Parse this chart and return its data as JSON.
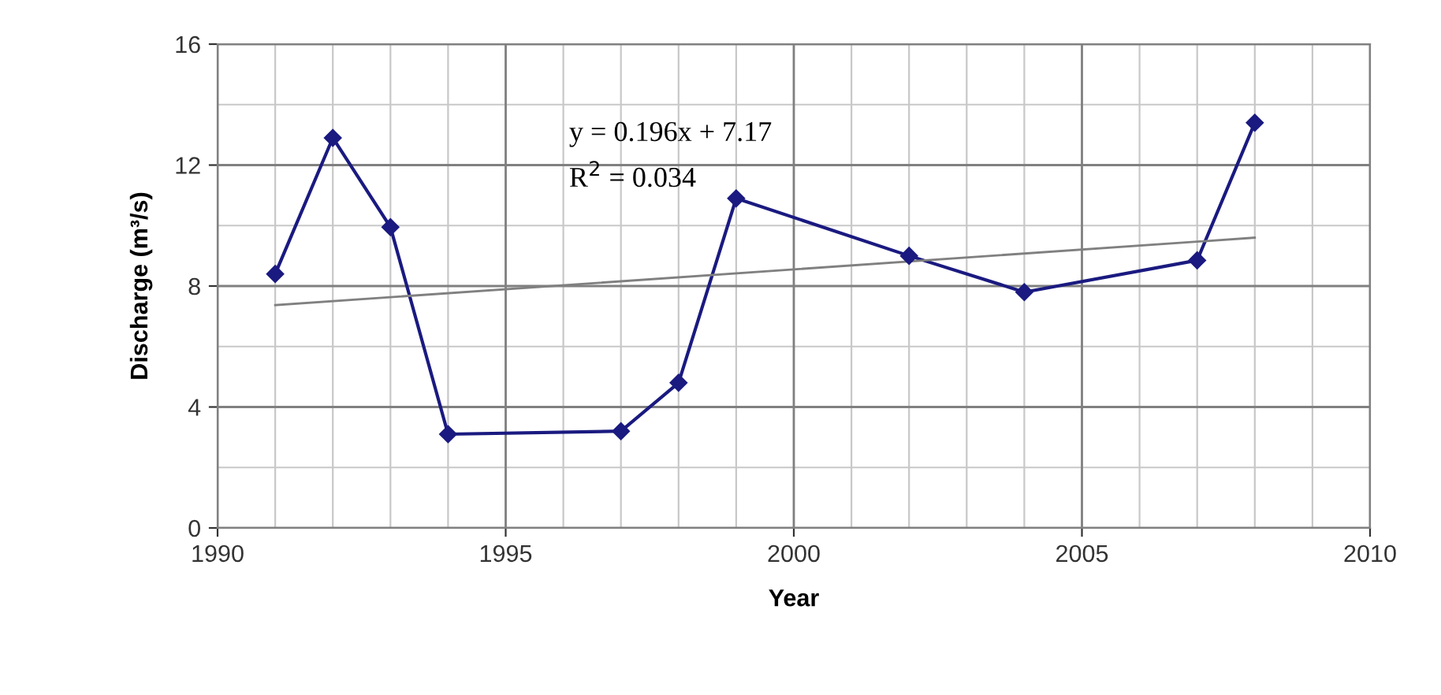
{
  "chart_data": {
    "type": "line",
    "xlabel": "Year",
    "ylabel": "Discharge (m³/s)",
    "xlim": [
      1990,
      2010
    ],
    "xticks": [
      1990,
      1995,
      2000,
      2005,
      2010
    ],
    "ylim": [
      0,
      16
    ],
    "yticks": [
      0,
      4,
      8,
      12,
      16
    ],
    "grid": true,
    "legend": false,
    "series": [
      {
        "x": [
          1991,
          1992,
          1993,
          1994,
          1997,
          1998,
          1999,
          2002,
          2004,
          2007,
          2008
        ],
        "values": [
          8.4,
          12.9,
          9.95,
          3.1,
          3.2,
          4.8,
          10.9,
          9.0,
          7.8,
          8.85,
          13.4
        ],
        "color": "#1a1a80",
        "marker": "diamond"
      },
      {
        "type": "line",
        "x": [
          1991,
          2008
        ],
        "values": [
          7.37,
          9.6
        ],
        "color": "#808080",
        "marker": "none"
      }
    ],
    "annotations": [
      {
        "text": "y = 0.196x + 7.17"
      },
      {
        "text": "R$^{2}$ = 0.034"
      }
    ]
  }
}
